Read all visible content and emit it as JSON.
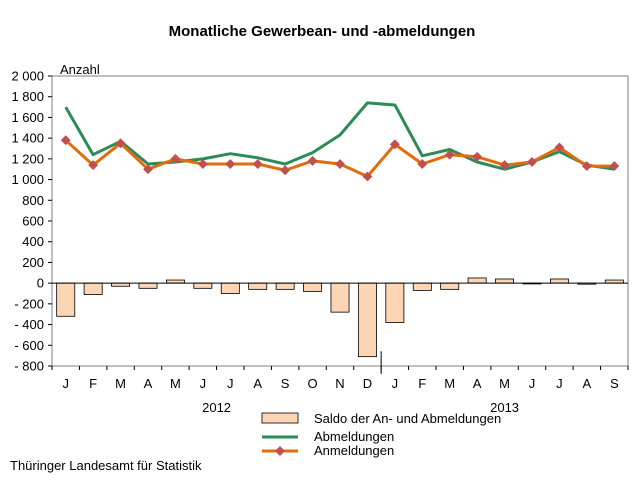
{
  "chart_data": {
    "type": "bar",
    "title": "Monatliche Gewerbean- und -abmeldungen",
    "ylabel": "Anzahl",
    "ylim": [
      -800,
      2000
    ],
    "yticks": [
      -800,
      -600,
      -400,
      -200,
      0,
      200,
      400,
      600,
      800,
      1000,
      1200,
      1400,
      1600,
      1800,
      2000
    ],
    "ytick_labels": [
      "- 800",
      "- 600",
      "- 400",
      "- 200",
      "0",
      "200",
      "400",
      "600",
      "800",
      "1 000",
      "1 200",
      "1 400",
      "1 600",
      "1 800",
      "2 000"
    ],
    "categories": [
      "J",
      "F",
      "M",
      "A",
      "M",
      "J",
      "J",
      "A",
      "S",
      "O",
      "N",
      "D",
      "J",
      "F",
      "M",
      "A",
      "M",
      "J",
      "J",
      "A",
      "S"
    ],
    "year_labels": [
      {
        "label": "2012",
        "start_index": 0,
        "end_index": 11
      },
      {
        "label": "2013",
        "start_index": 12,
        "end_index": 20
      }
    ],
    "series": [
      {
        "name": "Saldo der An- und Abmeldungen",
        "type": "bar",
        "color": "#fcd5b5",
        "values": [
          -320,
          -110,
          -30,
          -50,
          30,
          -50,
          -100,
          -60,
          -60,
          -80,
          -280,
          -710,
          -380,
          -70,
          -60,
          50,
          40,
          0,
          40,
          -10,
          30
        ]
      },
      {
        "name": "Abmeldungen",
        "type": "line",
        "color": "#2e8b57",
        "values": [
          1700,
          1240,
          1370,
          1150,
          1170,
          1200,
          1250,
          1210,
          1150,
          1260,
          1430,
          1740,
          1720,
          1230,
          1290,
          1170,
          1100,
          1170,
          1270,
          1140,
          1100
        ]
      },
      {
        "name": "Anmeldungen",
        "type": "line",
        "color": "#e36c0a",
        "marker_color": "#c0504d",
        "values": [
          1380,
          1140,
          1350,
          1100,
          1200,
          1150,
          1150,
          1150,
          1090,
          1180,
          1150,
          1030,
          1340,
          1150,
          1240,
          1220,
          1140,
          1170,
          1310,
          1130,
          1130
        ]
      }
    ],
    "grid": false,
    "legend_position": "bottom"
  },
  "footer": {
    "source": "Thüringer Landesamt für Statistik"
  }
}
